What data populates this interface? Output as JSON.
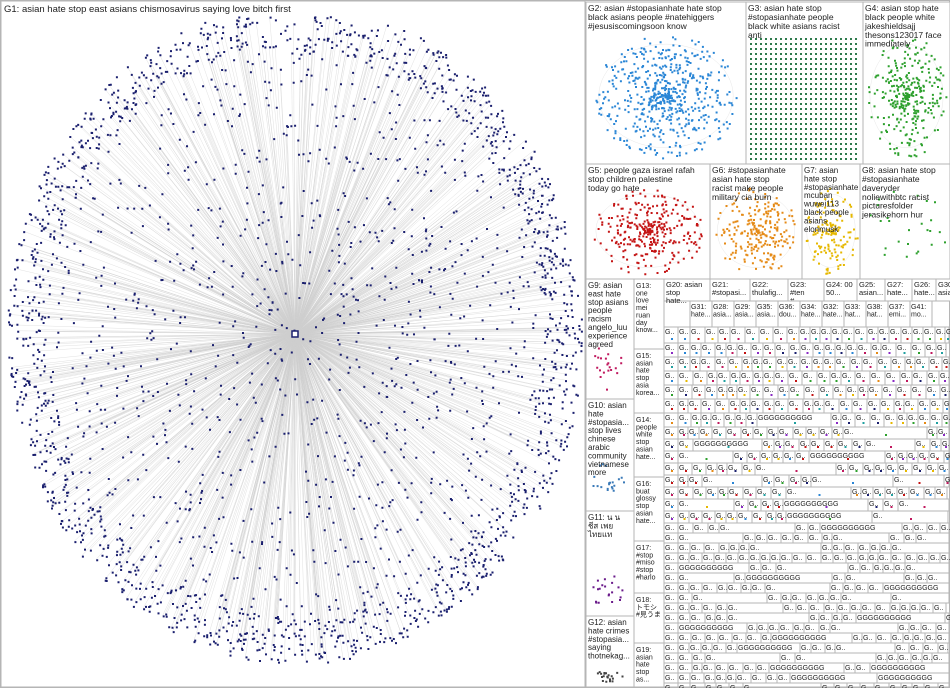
{
  "colors": {
    "navy": "#1a1f6e",
    "blue": "#2a86d6",
    "darkgreen": "#2f7a4c",
    "green": "#2da02d",
    "red": "#c41414",
    "orange": "#e58a16",
    "gold": "#e6b800",
    "edge": "#cfcfcf",
    "border": "#b5b5b5"
  },
  "main_group": {
    "label": "G1: asian hate stop east asians chismosavirus saying love bitch first",
    "node_color": "navy",
    "pattern": "hub-and-ring"
  },
  "groups": [
    {
      "id": "G2",
      "label": "G2: asian #stopasianhate hate stop black asians people #natehiggers #jesusiscomingsoon know",
      "color": "blue",
      "pattern": "cluster"
    },
    {
      "id": "G3",
      "label": "G3: asian hate stop #stopasianhate people black white asians racist anti",
      "color": "darkgreen",
      "pattern": "grid"
    },
    {
      "id": "G4",
      "label": "G4: asian stop hate black people white jakeshieldsajj thesons123017 face immediately",
      "color": "green",
      "pattern": "cluster"
    },
    {
      "id": "G5",
      "label": "G5: people gaza israel rafah stop children palestine today go hate",
      "color": "red",
      "pattern": "cluster"
    },
    {
      "id": "G6",
      "label": "G6: #stopasianhate asian hate stop racist make people military cia burn",
      "color": "orange",
      "pattern": "cluster"
    },
    {
      "id": "G7",
      "label": "G7: asian hate stop #stopasianhate mcuban wuwei113 black people asians elonmusk",
      "color": "gold",
      "pattern": "cluster"
    },
    {
      "id": "G8",
      "label": "G8: asian hate stop #stopasianhate daveryder noliewithbtc racist picturesfolder jerasikehorn hur",
      "color": "green",
      "pattern": "sparse"
    },
    {
      "id": "G9",
      "label": "G9: asian east hate stop asians people racism angelo_luu experience agreed"
    },
    {
      "id": "G10",
      "label": "G10: asian hate #stopasia... stop lives chinese arabic community vietnamese more"
    },
    {
      "id": "G11",
      "label": "G11: น น ชีส เพย ไทยแท"
    },
    {
      "id": "G12",
      "label": "G12: asian hate crimes #stopasia... saying thotnekag..."
    },
    {
      "id": "G13",
      "label": "G13: one love mei ruan day know..."
    },
    {
      "id": "G14",
      "label": "G14: people white stop asian hate..."
    },
    {
      "id": "G15",
      "label": "G15: asian hate stop asia korea..."
    },
    {
      "id": "G16",
      "label": "G16: buat glossy stop asian hate..."
    },
    {
      "id": "G17",
      "label": "G17: #stop #miso #stop #harlo"
    },
    {
      "id": "G18",
      "label": "G18: トモシ #見うま ソル"
    },
    {
      "id": "G19",
      "label": "G19: asian hate stop as..."
    },
    {
      "id": "G20",
      "label": "G20: asian stop hate..."
    },
    {
      "id": "G21",
      "label": "G21: #stopasi..."
    },
    {
      "id": "G22",
      "label": "G22: thulafig..."
    },
    {
      "id": "G23",
      "label": "G23: #ten #..."
    },
    {
      "id": "G24",
      "label": "G24: 00 50..."
    },
    {
      "id": "G25",
      "label": "G25: asian..."
    },
    {
      "id": "G26",
      "label": "G26: hate..."
    },
    {
      "id": "G27",
      "label": "G27: hate..."
    },
    {
      "id": "G28",
      "label": "G28: asia..."
    },
    {
      "id": "G29",
      "label": "G29: asia..."
    },
    {
      "id": "G30",
      "label": "G30: asia..."
    },
    {
      "id": "G31",
      "label": "G31: hate..."
    },
    {
      "id": "G32",
      "label": "G32: hate..."
    },
    {
      "id": "G33",
      "label": "G33: hat..."
    },
    {
      "id": "G34",
      "label": "G34: hate..."
    },
    {
      "id": "G35",
      "label": "G35: asia..."
    },
    {
      "id": "G36",
      "label": "G36: dou..."
    },
    {
      "id": "G37",
      "label": "G37: emi..."
    },
    {
      "id": "G38",
      "label": "G38: hat..."
    },
    {
      "id": "G39",
      "label": "G39: hat..."
    },
    {
      "id": "G40",
      "label": "G40: mo..."
    },
    {
      "id": "G41",
      "label": "G41: mo..."
    },
    {
      "id": "G42",
      "label": "G42: stop..."
    },
    {
      "id": "G43",
      "label": "G43: h..."
    }
  ],
  "tiny_group_label": "G..",
  "tiny_group_wide_label": "GGGGGGGGGG"
}
